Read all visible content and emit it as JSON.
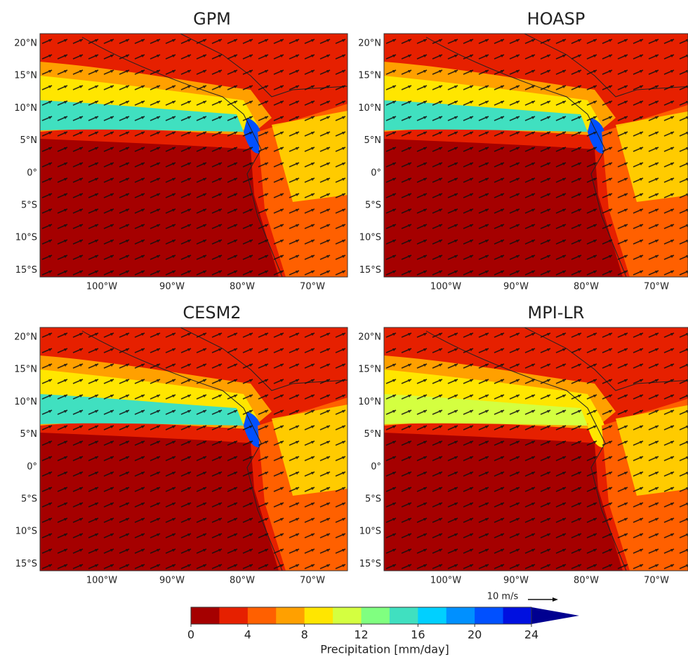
{
  "panels": [
    {
      "title": "GPM"
    },
    {
      "title": "HOASP"
    },
    {
      "title": "CESM2"
    },
    {
      "title": "MPI-LR"
    }
  ],
  "lat_labels": [
    "20°N",
    "15°N",
    "10°N",
    "5°N",
    "0°",
    "5°S",
    "10°S",
    "15°S"
  ],
  "lon_labels": [
    "100°W",
    "90°W",
    "80°W",
    "70°W"
  ],
  "wind_key": "10 m/s",
  "colorbar": {
    "label": "Precipitation [mm/day]",
    "lim": [
      0,
      24
    ],
    "ticks": [
      0,
      4,
      8,
      12,
      16,
      20,
      24
    ],
    "colors": [
      "#a50000",
      "#e62000",
      "#ff6000",
      "#ffa000",
      "#ffe600",
      "#d4ff40",
      "#80ff80",
      "#40e0c0",
      "#00d0ff",
      "#0090ff",
      "#0050ff",
      "#0010e0",
      "#000090"
    ]
  }
}
